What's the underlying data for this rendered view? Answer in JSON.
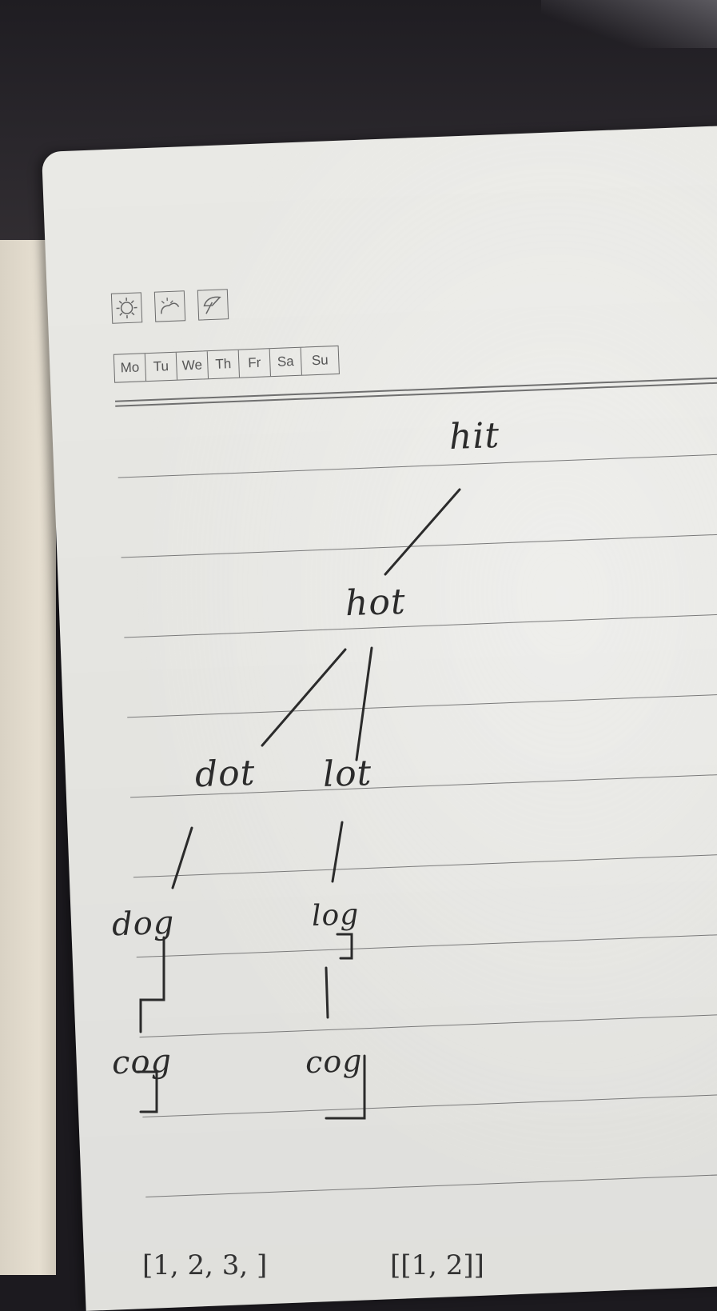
{
  "calendar": {
    "weather_icons": [
      "sun-icon",
      "partly-cloudy-icon",
      "umbrella-icon"
    ],
    "days": [
      "Mo",
      "Tu",
      "We",
      "Th",
      "Fr",
      "Sa",
      "Su"
    ]
  },
  "tree": {
    "root": "hit",
    "level1": "hot",
    "level2_left": "dot",
    "level2_right": "lot",
    "level3_left": "dog",
    "level3_right": "log",
    "level4_left": "cog",
    "level4_right": "cog"
  },
  "bottom_notes": {
    "left": "[1, 2, 3, ]",
    "right": "[[1, 2]]"
  },
  "colors": {
    "desk": "#1f1d22",
    "page": "#eeeeea",
    "ink": "#2b2b2b",
    "ribbon": "#5a3a2e"
  }
}
